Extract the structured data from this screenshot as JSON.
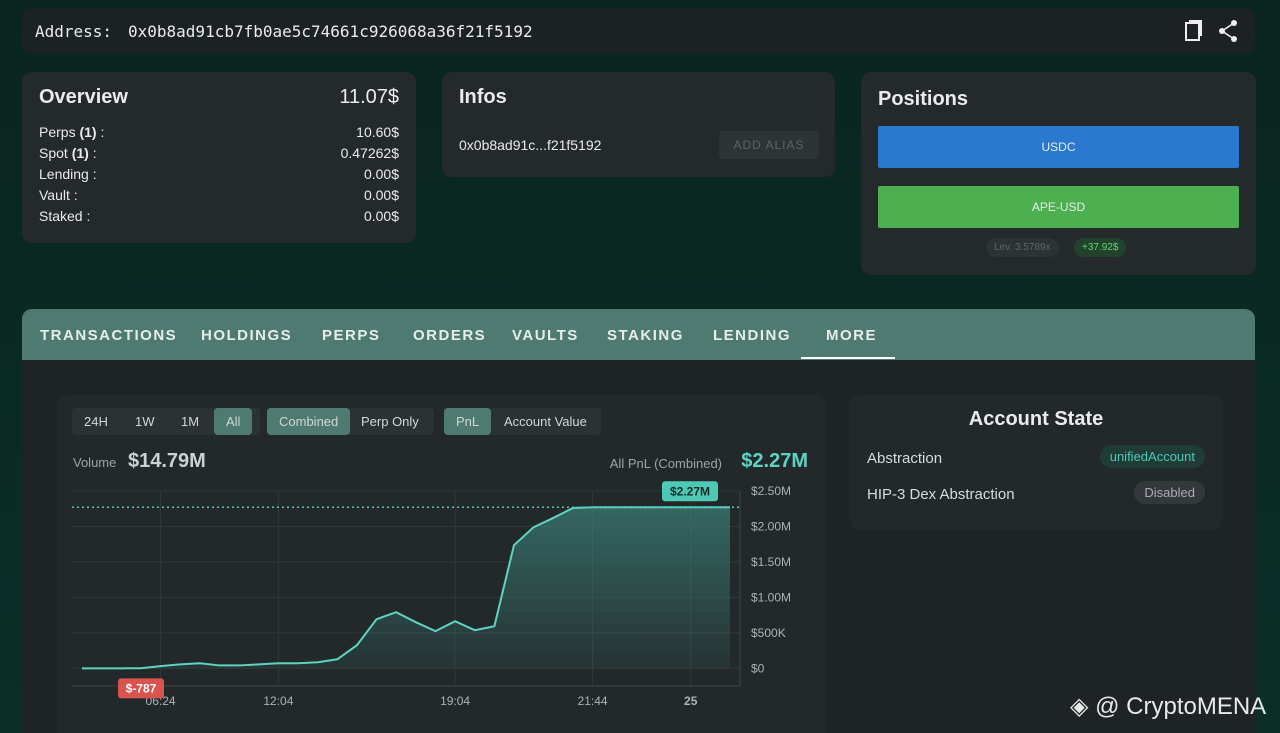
{
  "address": {
    "label": "Address:",
    "value": "0x0b8ad91cb7fb0ae5c74661c926068a36f21f5192"
  },
  "overview": {
    "title": "Overview",
    "total": "11.07$",
    "rows": [
      {
        "label": "Perps",
        "count": "(1)",
        "colon": ":",
        "value": "10.60$"
      },
      {
        "label": "Spot",
        "count": "(1)",
        "colon": ":",
        "value": "0.47262$"
      },
      {
        "label": "Lending :",
        "value": "0.00$"
      },
      {
        "label": "Vault :",
        "value": "0.00$"
      },
      {
        "label": "Staked :",
        "value": "0.00$"
      }
    ]
  },
  "infos": {
    "title": "Infos",
    "short_address": "0x0b8ad91c...f21f5192",
    "button": "ADD ALIAS"
  },
  "positions": {
    "title": "Positions",
    "items": [
      "USDC",
      "APE-USD"
    ],
    "lev_label": "Lev.",
    "lev_value": "3.5789x",
    "pnl": "+37.92$"
  },
  "tabs": {
    "items": [
      "TRANSACTIONS",
      "HOLDINGS",
      "PERPS",
      "ORDERS",
      "VAULTS",
      "STAKING",
      "LENDING",
      "MORE"
    ],
    "active": 7
  },
  "filters": {
    "ranges": [
      "24H",
      "1W",
      "1M",
      "All"
    ],
    "active_range": 3,
    "modes": [
      "Combined",
      "Perp Only"
    ],
    "active_mode": 0,
    "metrics": [
      "PnL",
      "Account Value"
    ],
    "active_metric": 0
  },
  "summary": {
    "volume_label": "Volume",
    "volume": "$14.79M",
    "pnl_label": "All PnL (Combined)",
    "pnl": "$2.27M"
  },
  "chart_data": {
    "type": "area",
    "color": "#5fd3c3",
    "categories": [
      null,
      null,
      null,
      null,
      "06:24",
      null,
      null,
      null,
      null,
      null,
      "12:04",
      null,
      null,
      null,
      null,
      null,
      null,
      null,
      null,
      "19:04",
      null,
      null,
      null,
      null,
      null,
      null,
      "21:44",
      null,
      null,
      null,
      null,
      "25",
      null,
      null
    ],
    "values": [
      -787,
      -787,
      -787,
      0,
      30000,
      55000,
      70000,
      40000,
      40000,
      55000,
      70000,
      70000,
      85000,
      127000,
      325000,
      692000,
      791000,
      650000,
      523000,
      664000,
      537000,
      593000,
      1737000,
      1990000,
      2120000,
      2260000,
      2270000,
      2270000,
      2270000,
      2270000,
      2270000,
      2270000,
      2270000,
      2270000
    ],
    "ylim": [
      -250000,
      2500000
    ],
    "yticks": [
      {
        "value": 0,
        "label": "$0"
      },
      {
        "value": 500000,
        "label": "$500K"
      },
      {
        "value": 1000000,
        "label": "$1.00M"
      },
      {
        "value": 1500000,
        "label": "$1.50M"
      },
      {
        "value": 2000000,
        "label": "$2.00M"
      },
      {
        "value": 2500000,
        "label": "$2.50M"
      }
    ],
    "grid": true,
    "annotations": [
      {
        "value": 2270000,
        "label": "$2.27M",
        "color": "#4fc9b6"
      },
      {
        "value": -787,
        "label": "$-787",
        "color": "#d9534f"
      }
    ]
  },
  "account_state": {
    "title": "Account State",
    "rows": [
      {
        "label": "Abstraction",
        "value": "unifiedAccount"
      },
      {
        "label": "HIP-3 Dex Abstraction",
        "value": "Disabled"
      }
    ]
  },
  "watermark": "@ CryptoMENA"
}
